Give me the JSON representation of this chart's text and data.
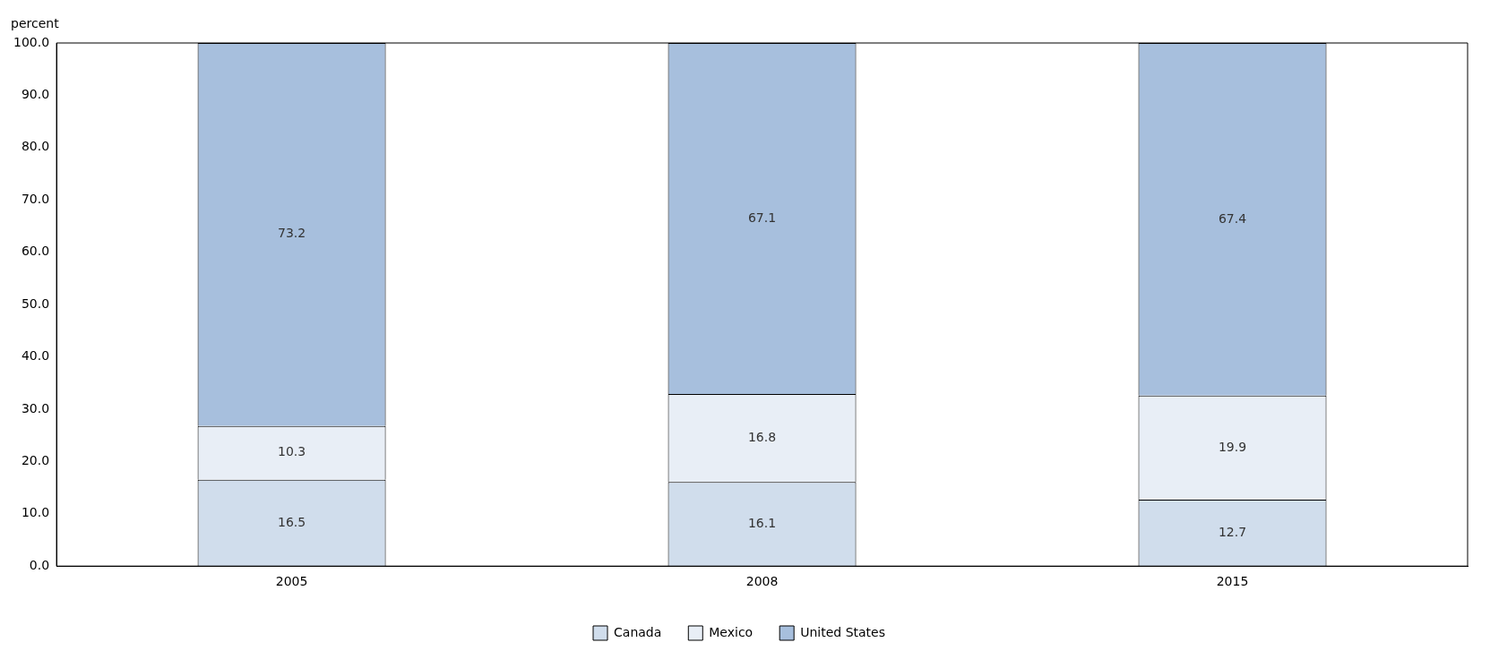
{
  "chart_data": {
    "type": "bar",
    "ylabel": "percent",
    "categories": [
      "2005",
      "2008",
      "2015"
    ],
    "stacked": true,
    "data_labels": true,
    "legend": "bottom",
    "grid": false,
    "ylim": [
      0,
      100
    ],
    "yticks": [
      {
        "value": 0,
        "label": "0.0"
      },
      {
        "value": 10,
        "label": "10.0"
      },
      {
        "value": 20,
        "label": "20.0"
      },
      {
        "value": 30,
        "label": "30.0"
      },
      {
        "value": 40,
        "label": "40.0"
      },
      {
        "value": 50,
        "label": "50.0"
      },
      {
        "value": 60,
        "label": "60.0"
      },
      {
        "value": 70,
        "label": "70.0"
      },
      {
        "value": 80,
        "label": "80.0"
      },
      {
        "value": 90,
        "label": "90.0"
      },
      {
        "value": 100,
        "label": "100.0"
      }
    ],
    "series": [
      {
        "name": "Canada",
        "color": "#d0ddec",
        "values": [
          16.5,
          16.1,
          12.7
        ]
      },
      {
        "name": "Mexico",
        "color": "#e8eef6",
        "values": [
          10.3,
          16.8,
          19.9
        ]
      },
      {
        "name": "United States",
        "color": "#a7bfdd",
        "values": [
          73.2,
          67.1,
          67.4
        ]
      }
    ]
  }
}
